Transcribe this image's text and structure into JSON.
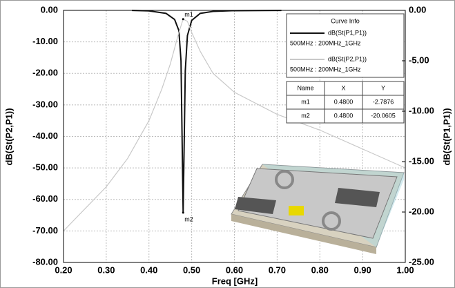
{
  "chart_data": {
    "type": "line",
    "x_label": "Freq [GHz]",
    "y_label": "dB(St(P2,P1))",
    "y2_label": "dB(St(P1,P1))",
    "xlim": [
      0.2,
      1.0
    ],
    "xticks": [
      {
        "value": 0.2,
        "label": "0.20"
      },
      {
        "value": 0.3,
        "label": "0.30"
      },
      {
        "value": 0.4,
        "label": "0.40"
      },
      {
        "value": 0.5,
        "label": "0.50"
      },
      {
        "value": 0.6,
        "label": "0.60"
      },
      {
        "value": 0.7,
        "label": "0.70"
      },
      {
        "value": 0.8,
        "label": "0.80"
      },
      {
        "value": 0.9,
        "label": "0.90"
      },
      {
        "value": 1.0,
        "label": "1.00"
      }
    ],
    "ylim": [
      -80,
      0
    ],
    "yticks": [
      {
        "value": 0,
        "label": "0.00"
      },
      {
        "value": -10,
        "label": "-10.00"
      },
      {
        "value": -20,
        "label": "-20.00"
      },
      {
        "value": -30,
        "label": "-30.00"
      },
      {
        "value": -40,
        "label": "-40.00"
      },
      {
        "value": -50,
        "label": "-50.00"
      },
      {
        "value": -60,
        "label": "-60.00"
      },
      {
        "value": -70,
        "label": "-70.00"
      },
      {
        "value": -80,
        "label": "-80.00"
      }
    ],
    "y2lim": [
      -25,
      0
    ],
    "y2ticks": [
      {
        "value": 0,
        "label": "0.00"
      },
      {
        "value": -5,
        "label": "-5.00"
      },
      {
        "value": -10,
        "label": "-10.00"
      },
      {
        "value": -15,
        "label": "-15.00"
      },
      {
        "value": -20,
        "label": "-20.00"
      },
      {
        "value": -25,
        "label": "-25.00"
      }
    ],
    "grid": true,
    "legend_title": "Curve Info",
    "series": [
      {
        "name": "dB(St(P1,P1))",
        "sweep": "500MHz : 200MHz_1GHz",
        "color": "#111111",
        "axis": "y2",
        "x": [
          0.36,
          0.4,
          0.44,
          0.46,
          0.47,
          0.475,
          0.48,
          0.485,
          0.49,
          0.5,
          0.52,
          0.55,
          0.6,
          0.71
        ],
        "values": [
          -0.01,
          -0.05,
          -0.3,
          -0.9,
          -2,
          -5,
          -20.0605,
          -6,
          -2.5,
          -1,
          -0.3,
          -0.1,
          -0.03,
          -0.01
        ]
      },
      {
        "name": "dB(St(P2,P1))",
        "sweep": "500MHz : 200MHz_1GHz",
        "color": "#c8c8c8",
        "x": [
          0.2,
          0.25,
          0.3,
          0.35,
          0.4,
          0.43,
          0.45,
          0.47,
          0.48,
          0.49,
          0.5,
          0.52,
          0.55,
          0.6,
          0.7,
          0.8,
          0.9,
          1.0
        ],
        "values": [
          -70,
          -63,
          -56,
          -47,
          -35,
          -25,
          -17,
          -7,
          -2.7876,
          -3.5,
          -7,
          -13,
          -20,
          -26,
          -33,
          -38,
          -44,
          -50
        ]
      }
    ],
    "markers": [
      {
        "name": "m1",
        "series": 1,
        "x": 0.48,
        "y": -2.7876
      },
      {
        "name": "m2",
        "series": 0,
        "x": 0.48,
        "y": -20.0605
      }
    ],
    "marker_table": {
      "columns": [
        "Name",
        "X",
        "Y"
      ],
      "rows": [
        [
          "m1",
          "0.4800",
          "-2.7876"
        ],
        [
          "m2",
          "0.4800",
          "-20.0605"
        ]
      ]
    }
  }
}
